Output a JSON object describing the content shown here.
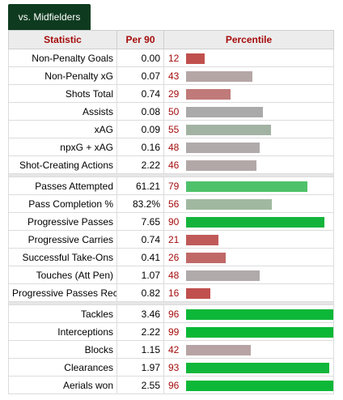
{
  "tab": {
    "label": "vs. Midfielders"
  },
  "headers": {
    "statistic": "Statistic",
    "per90": "Per 90",
    "percentile": "Percentile"
  },
  "colors": {
    "tab_bg": "#0e3b1f",
    "header_text": "#a50c0c",
    "percentile_text": "#a50c0c"
  },
  "groups": [
    [
      {
        "stat": "Non-Penalty Goals",
        "per90": "0.00",
        "pct": 12,
        "color": "#c0504d"
      },
      {
        "stat": "Non-Penalty xG",
        "per90": "0.07",
        "pct": 43,
        "color": "#b5a6a6"
      },
      {
        "stat": "Shots Total",
        "per90": "0.74",
        "pct": 29,
        "color": "#c07a79"
      },
      {
        "stat": "Assists",
        "per90": "0.08",
        "pct": 50,
        "color": "#aaaaaa"
      },
      {
        "stat": "xAG",
        "per90": "0.09",
        "pct": 55,
        "color": "#a3b3a3"
      },
      {
        "stat": "npxG + xAG",
        "per90": "0.16",
        "pct": 48,
        "color": "#b0aaaa"
      },
      {
        "stat": "Shot-Creating Actions",
        "per90": "2.22",
        "pct": 46,
        "color": "#b3a8a8"
      }
    ],
    [
      {
        "stat": "Passes Attempted",
        "per90": "61.21",
        "pct": 79,
        "color": "#4ec16a"
      },
      {
        "stat": "Pass Completion %",
        "per90": "83.2%",
        "pct": 56,
        "color": "#a0b8a0"
      },
      {
        "stat": "Progressive Passes",
        "per90": "7.65",
        "pct": 90,
        "color": "#14b43c"
      },
      {
        "stat": "Progressive Carries",
        "per90": "0.74",
        "pct": 21,
        "color": "#c05a59"
      },
      {
        "stat": "Successful Take-Ons",
        "per90": "0.41",
        "pct": 26,
        "color": "#c06868"
      },
      {
        "stat": "Touches (Att Pen)",
        "per90": "1.07",
        "pct": 48,
        "color": "#b0aaaa"
      },
      {
        "stat": "Progressive Passes Rec",
        "per90": "0.82",
        "pct": 16,
        "color": "#c0504d"
      }
    ],
    [
      {
        "stat": "Tackles",
        "per90": "3.46",
        "pct": 96,
        "color": "#0db838"
      },
      {
        "stat": "Interceptions",
        "per90": "2.22",
        "pct": 99,
        "color": "#0ab836"
      },
      {
        "stat": "Blocks",
        "per90": "1.15",
        "pct": 42,
        "color": "#b7a3a3"
      },
      {
        "stat": "Clearances",
        "per90": "1.97",
        "pct": 93,
        "color": "#10b73a"
      },
      {
        "stat": "Aerials won",
        "per90": "2.55",
        "pct": 96,
        "color": "#0db838"
      }
    ]
  ]
}
